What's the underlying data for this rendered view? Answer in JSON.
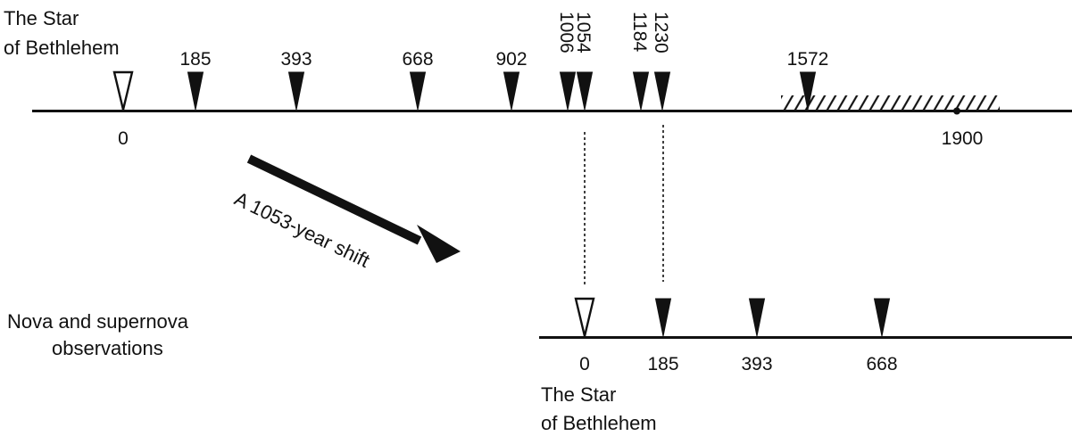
{
  "top_timeline": {
    "title_line1": "The Star",
    "title_line2": "of Bethlehem",
    "origin_label": "0",
    "end_label": "1900",
    "markers": [
      {
        "year": 0,
        "label": "",
        "style": "hollow"
      },
      {
        "year": 185,
        "label": "185",
        "style": "filled",
        "orientation": "horizontal"
      },
      {
        "year": 393,
        "label": "393",
        "style": "filled",
        "orientation": "horizontal"
      },
      {
        "year": 668,
        "label": "668",
        "style": "filled",
        "orientation": "horizontal"
      },
      {
        "year": 902,
        "label": "902",
        "style": "filled",
        "orientation": "horizontal"
      },
      {
        "year": 1006,
        "label": "1006",
        "style": "filled",
        "orientation": "vertical"
      },
      {
        "year": 1054,
        "label": "1054",
        "style": "filled",
        "orientation": "vertical"
      },
      {
        "year": 1184,
        "label": "1184",
        "style": "filled",
        "orientation": "vertical"
      },
      {
        "year": 1230,
        "label": "1230",
        "style": "filled",
        "orientation": "vertical"
      },
      {
        "year": 1572,
        "label": "1572",
        "style": "filled",
        "orientation": "horizontal"
      }
    ],
    "hatched_from": 1550,
    "hatched_to": 1870
  },
  "shift": {
    "label": "A 1053-year shift"
  },
  "bottom_timeline": {
    "side_label_line1": "Nova and supernova",
    "side_label_line2": "observations",
    "caption_line1": "The Star",
    "caption_line2": "of Bethlehem",
    "markers": [
      {
        "year": 0,
        "label": "0",
        "style": "hollow"
      },
      {
        "year": 185,
        "label": "185",
        "style": "filled"
      },
      {
        "year": 393,
        "label": "393",
        "style": "filled"
      },
      {
        "year": 668,
        "label": "668",
        "style": "filled"
      }
    ]
  },
  "colors": {
    "ink": "#111111",
    "background": "#ffffff"
  }
}
